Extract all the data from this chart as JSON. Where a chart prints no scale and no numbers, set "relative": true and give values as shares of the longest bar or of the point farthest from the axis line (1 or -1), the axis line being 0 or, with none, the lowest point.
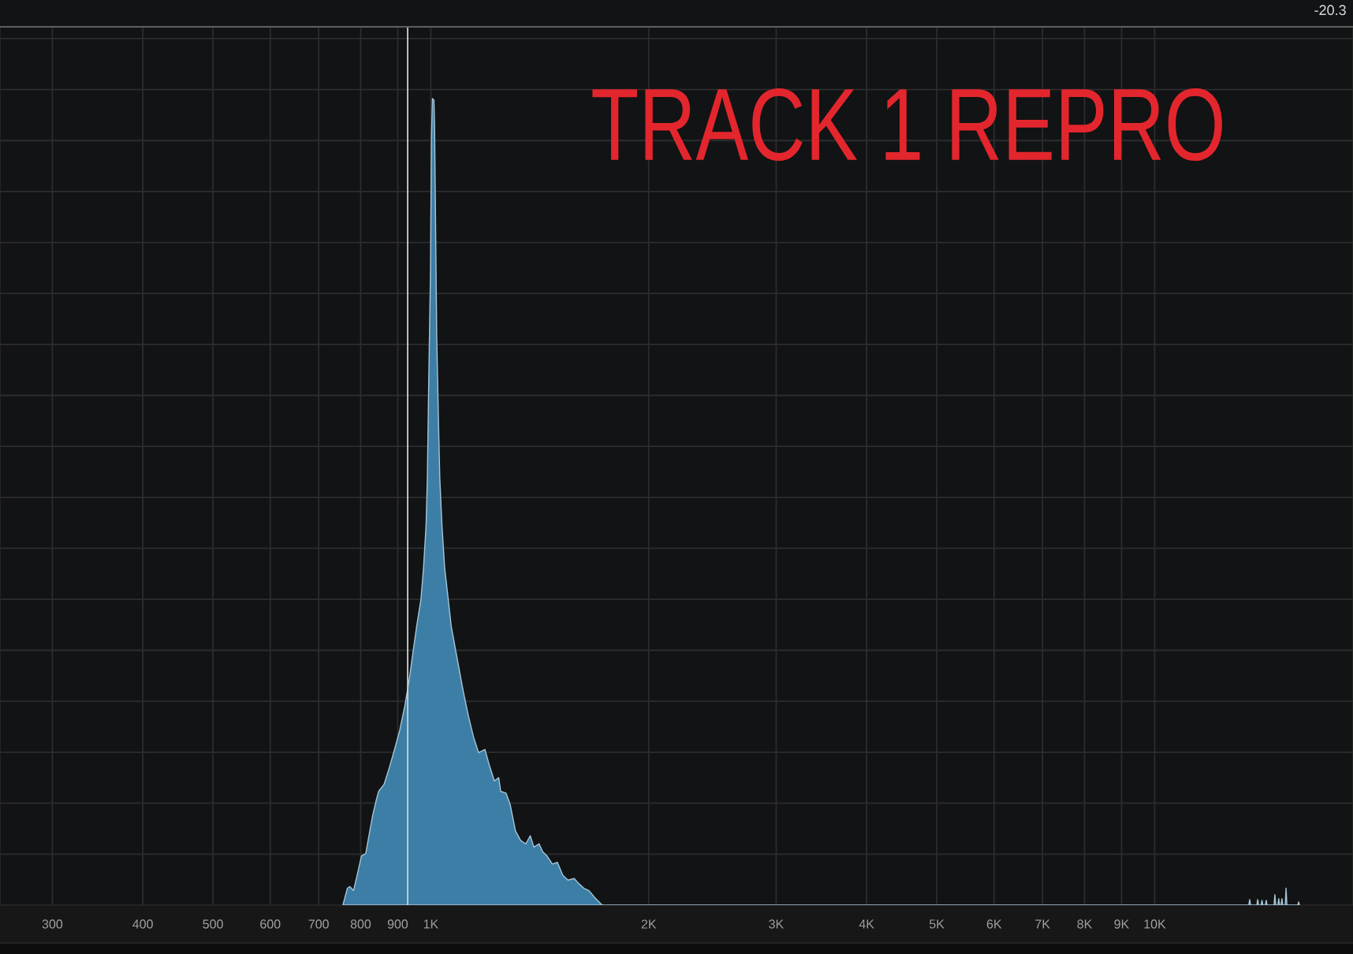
{
  "chart_data": {
    "type": "area",
    "title": "TRACK 1 REPRO",
    "annotations": [
      "-20.3"
    ],
    "x": [
      756,
      767,
      773,
      782,
      793,
      802,
      813,
      819,
      831,
      840,
      847,
      862,
      876,
      891,
      906,
      921,
      934,
      945,
      956,
      969,
      977,
      985,
      989,
      993,
      999,
      1002,
      1005,
      1010,
      1012,
      1015,
      1019,
      1025,
      1029,
      1036,
      1045,
      1057,
      1067,
      1080,
      1093,
      1107,
      1126,
      1145,
      1164,
      1188,
      1204,
      1224,
      1241,
      1249,
      1270,
      1287,
      1309,
      1331,
      1353,
      1372,
      1388,
      1411,
      1428,
      1447,
      1472,
      1496,
      1522,
      1547,
      1578,
      1600,
      1627,
      1654,
      1682,
      1725,
      13490,
      13530,
      13570,
      13840,
      13880,
      13920,
      14030,
      14070,
      14110,
      14220,
      14260,
      14300,
      14620,
      14660,
      14700,
      14800,
      14840,
      14880,
      14950,
      14990,
      15030,
      15150,
      15190,
      15230,
      15770,
      15810,
      15850
    ],
    "values": [
      0,
      0.021,
      0.023,
      0.018,
      0.041,
      0.061,
      0.064,
      0.08,
      0.111,
      0.129,
      0.141,
      0.15,
      0.17,
      0.193,
      0.217,
      0.248,
      0.281,
      0.314,
      0.346,
      0.379,
      0.418,
      0.471,
      0.529,
      0.639,
      0.789,
      0.951,
      1,
      0.998,
      0.969,
      0.854,
      0.705,
      0.594,
      0.529,
      0.471,
      0.418,
      0.379,
      0.346,
      0.32,
      0.295,
      0.268,
      0.236,
      0.209,
      0.189,
      0.193,
      0.174,
      0.154,
      0.158,
      0.141,
      0.139,
      0.125,
      0.092,
      0.08,
      0.076,
      0.086,
      0.072,
      0.076,
      0.066,
      0.061,
      0.051,
      0.053,
      0.037,
      0.031,
      0.033,
      0.027,
      0.021,
      0.018,
      0.01,
      0,
      0,
      0.007,
      0,
      0,
      0.007,
      0,
      0,
      0.006,
      0,
      0,
      0.006,
      0,
      0,
      0.013,
      0,
      0,
      0.008,
      0,
      0,
      0.008,
      0,
      0,
      0.021,
      0,
      0,
      0.004,
      0
    ],
    "color": "#3c7ea6",
    "relative": true,
    "log": "x",
    "xlim": [
      254,
      18800
    ],
    "xticks": [
      300,
      400,
      500,
      600,
      700,
      800,
      900,
      {
        "value": 1000,
        "label": "1K"
      },
      {
        "value": 2000,
        "label": "2K"
      },
      {
        "value": 3000,
        "label": "3K"
      },
      {
        "value": 4000,
        "label": "4K"
      },
      {
        "value": 5000,
        "label": "5K"
      },
      {
        "value": 6000,
        "label": "6K"
      },
      {
        "value": 7000,
        "label": "7K"
      },
      {
        "value": 8000,
        "label": "8K"
      },
      {
        "value": 9000,
        "label": "9K"
      },
      {
        "value": 10000,
        "label": "10K"
      }
    ],
    "grid": true,
    "tick_labels": "x",
    "ref_lines": [
      {
        "axis": "x",
        "value": 929,
        "color": "#c9d3d9"
      }
    ]
  }
}
